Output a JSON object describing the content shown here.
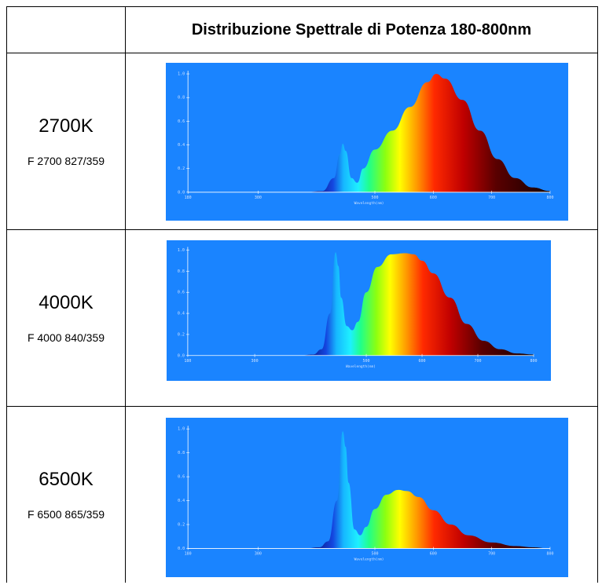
{
  "header": {
    "title": "Distribuzione Spettrale di Potenza 180-800nm"
  },
  "rows": [
    {
      "temperature": "2700K",
      "code": "F 2700 827/359"
    },
    {
      "temperature": "4000K",
      "code": "F 4000 840/359"
    },
    {
      "temperature": "6500K",
      "code": "F 6500 865/359"
    }
  ],
  "colors": {
    "chart_bg": "#1a84ff",
    "axis": "#ffffff"
  },
  "chart_data": [
    {
      "type": "area",
      "title": "",
      "xlabel": "Wavelength(nm)",
      "ylabel": "",
      "xlim": [
        180,
        800
      ],
      "ylim": [
        0,
        1.0
      ],
      "x_ticks": [
        "180",
        "300",
        "500",
        "600",
        "700",
        "800"
      ],
      "y_ticks": [
        "0.0",
        "0.2",
        "0.4",
        "0.6",
        "0.8",
        "1.0"
      ],
      "x": [
        180,
        380,
        410,
        430,
        440,
        445,
        450,
        460,
        470,
        480,
        500,
        530,
        560,
        590,
        605,
        620,
        650,
        680,
        710,
        740,
        770,
        800
      ],
      "y": [
        0.0,
        0.0,
        0.01,
        0.12,
        0.32,
        0.41,
        0.35,
        0.12,
        0.08,
        0.2,
        0.36,
        0.52,
        0.72,
        0.93,
        1.0,
        0.96,
        0.78,
        0.52,
        0.28,
        0.12,
        0.04,
        0.01
      ]
    },
    {
      "type": "area",
      "title": "",
      "xlabel": "Wavelength(nm)",
      "ylabel": "",
      "xlim": [
        180,
        800
      ],
      "ylim": [
        0,
        1.0
      ],
      "x_ticks": [
        "180",
        "300",
        "500",
        "600",
        "700",
        "800"
      ],
      "y_ticks": [
        "0.0",
        "0.2",
        "0.4",
        "0.6",
        "0.8",
        "1.0"
      ],
      "x": [
        180,
        380,
        405,
        420,
        435,
        445,
        450,
        455,
        465,
        475,
        485,
        500,
        520,
        545,
        570,
        585,
        600,
        620,
        650,
        680,
        710,
        740,
        770,
        800
      ],
      "y": [
        0.0,
        0.0,
        0.01,
        0.06,
        0.4,
        0.98,
        0.85,
        0.55,
        0.28,
        0.24,
        0.32,
        0.6,
        0.84,
        0.96,
        0.97,
        0.96,
        0.9,
        0.78,
        0.55,
        0.3,
        0.14,
        0.06,
        0.02,
        0.01
      ]
    },
    {
      "type": "area",
      "title": "",
      "xlabel": "Wavelength(nm)",
      "ylabel": "",
      "xlim": [
        180,
        800
      ],
      "ylim": [
        0,
        1.0
      ],
      "x_ticks": [
        "180",
        "300",
        "500",
        "600",
        "700",
        "800"
      ],
      "y_ticks": [
        "0.0",
        "0.2",
        "0.4",
        "0.6",
        "0.8",
        "1.0"
      ],
      "x": [
        180,
        380,
        405,
        420,
        435,
        445,
        450,
        455,
        465,
        475,
        485,
        500,
        520,
        540,
        555,
        575,
        600,
        630,
        660,
        700,
        740,
        770,
        800
      ],
      "y": [
        0.0,
        0.0,
        0.01,
        0.06,
        0.4,
        0.98,
        0.85,
        0.55,
        0.16,
        0.11,
        0.18,
        0.33,
        0.45,
        0.49,
        0.48,
        0.43,
        0.32,
        0.2,
        0.11,
        0.05,
        0.02,
        0.01,
        0.0
      ]
    }
  ]
}
